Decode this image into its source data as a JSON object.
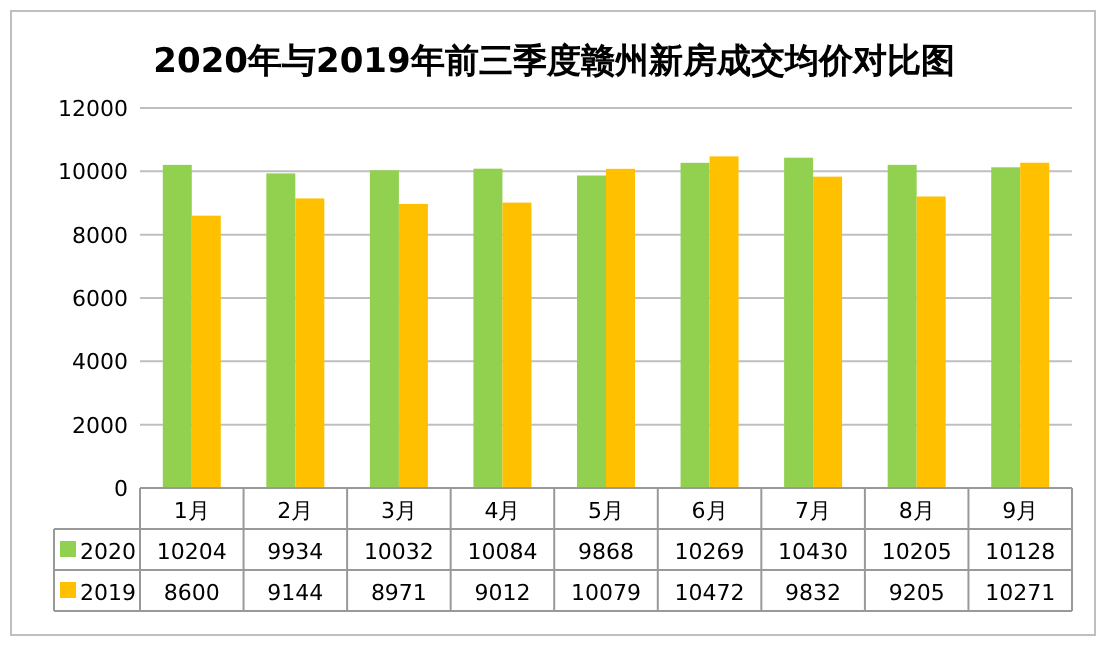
{
  "chart_data": {
    "type": "bar",
    "title": "2020年与2019年前三季度赣州新房成交均价对比图",
    "categories": [
      "1月",
      "2月",
      "3月",
      "4月",
      "5月",
      "6月",
      "7月",
      "8月",
      "9月"
    ],
    "series": [
      {
        "name": "2020",
        "color": "#92d050",
        "values": [
          10204,
          9934,
          10032,
          10084,
          9868,
          10269,
          10430,
          10205,
          10128
        ]
      },
      {
        "name": "2019",
        "color": "#ffc000",
        "values": [
          8600,
          9144,
          8971,
          9012,
          10079,
          10472,
          9832,
          9205,
          10271
        ]
      }
    ],
    "ylim": [
      0,
      12000
    ],
    "yticks": [
      0,
      2000,
      4000,
      6000,
      8000,
      10000,
      12000
    ],
    "grid": "y",
    "legend": "bottom",
    "data_labels": true
  }
}
